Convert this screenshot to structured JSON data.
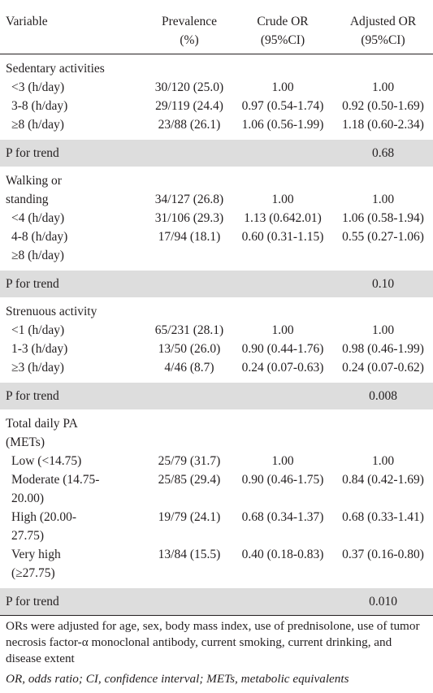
{
  "header": {
    "variable": "Variable",
    "prevalence_1": "Prevalence",
    "prevalence_2": "(%)",
    "crude_1": "Crude OR",
    "crude_2": "(95%CI)",
    "adjusted_1": "Adjusted OR",
    "adjusted_2": "(95%CI)"
  },
  "sections": [
    {
      "title": "Sedentary activities",
      "rows": [
        {
          "label": "<3 (h/day)",
          "prev": "30/120 (25.0)",
          "crude": "1.00",
          "adj": "1.00"
        },
        {
          "label": "3-8 (h/day)",
          "prev": "29/119 (24.4)",
          "crude": "0.97 (0.54-1.74)",
          "adj": "0.92 (0.50-1.69)"
        },
        {
          "label": "≥8 (h/day)",
          "prev": "23/88 (26.1)",
          "crude": "1.06 (0.56-1.99)",
          "adj": "1.18 (0.60-2.34)"
        }
      ],
      "trend_label": "P for trend",
      "trend_value": "0.68"
    },
    {
      "title": "Walking or",
      "title_2": "standing",
      "title_2_row": {
        "prev": "34/127 (26.8)",
        "crude": "1.00",
        "adj": "1.00"
      },
      "rows": [
        {
          "label": "<4 (h/day)",
          "prev": "31/106 (29.3)",
          "crude": "1.13 (0.642.01)",
          "adj": "1.06 (0.58-1.94)"
        },
        {
          "label": "4-8 (h/day)",
          "prev": "17/94 (18.1)",
          "crude": "0.60 (0.31-1.15)",
          "adj": "0.55 (0.27-1.06)"
        },
        {
          "label": "≥8 (h/day)",
          "prev": "",
          "crude": "",
          "adj": ""
        }
      ],
      "trend_label": "P for trend",
      "trend_value": "0.10"
    },
    {
      "title": "Strenuous activity",
      "rows": [
        {
          "label": "<1 (h/day)",
          "prev": "65/231 (28.1)",
          "crude": "1.00",
          "adj": "1.00"
        },
        {
          "label": "1-3 (h/day)",
          "prev": "13/50 (26.0)",
          "crude": "0.90 (0.44-1.76)",
          "adj": "0.98 (0.46-1.99)"
        },
        {
          "label": "≥3 (h/day)",
          "prev": "4/46 (8.7)",
          "crude": "0.24 (0.07-0.63)",
          "adj": "0.24 (0.07-0.62)"
        }
      ],
      "trend_label": "P for trend",
      "trend_value": "0.008"
    },
    {
      "title": "Total daily PA",
      "title_2": "(METs)",
      "rows": [
        {
          "label": "Low (<14.75)",
          "label_2": "",
          "prev": "25/79 (31.7)",
          "crude": "1.00",
          "adj": "1.00"
        },
        {
          "label": "Moderate (14.75-",
          "label_2": "20.00)",
          "prev": "25/85 (29.4)",
          "crude": "0.90 (0.46-1.75)",
          "adj": "0.84 (0.42-1.69)"
        },
        {
          "label": "High (20.00-",
          "label_2": "27.75)",
          "prev": "19/79 (24.1)",
          "crude": "0.68 (0.34-1.37)",
          "adj": "0.68 (0.33-1.41)"
        },
        {
          "label": "Very high",
          "label_2": "(≥27.75)",
          "prev": "13/84 (15.5)",
          "crude": "0.40 (0.18-0.83)",
          "adj": "0.37 (0.16-0.80)"
        }
      ],
      "trend_label": "P for trend",
      "trend_value": "0.010"
    }
  ],
  "footnote": "ORs were adjusted for age, sex, body mass index, use of prednisolone, use of tumor necrosis factor-α monoclonal antibody, current smoking, current drinking, and disease extent",
  "abbreviations": "OR, odds ratio; CI, confidence interval; METs, metabolic equivalents"
}
